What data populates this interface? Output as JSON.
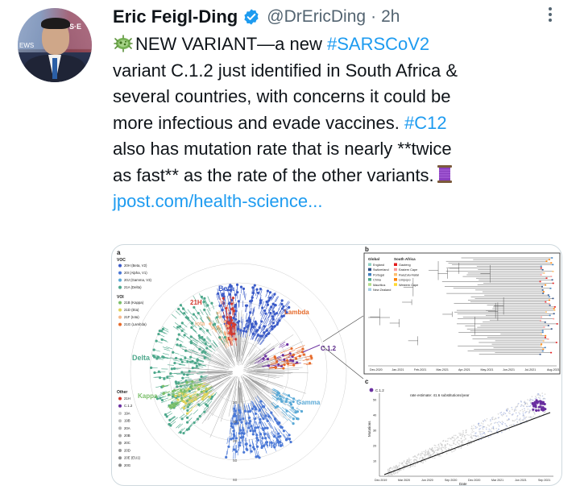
{
  "author": {
    "name": "Eric Feigl-Ding",
    "handle": "@DrEricDing",
    "separator": "·",
    "time": "2h"
  },
  "tweet": {
    "line1_lead": "NEW VARIANT—a new ",
    "line1_tag": "#SARSCoV2",
    "line2": "variant C.1.2 just identified in South Africa &",
    "line3": "several countries, with concerns it could be",
    "line4_lead": "more infectious and evade vaccines. ",
    "line4_tag": "#C12",
    "line5": "also has mutation rate that is nearly **twice",
    "line6": "as fast** as the rate of the other variants.",
    "link": "jpost.com/health-science..."
  },
  "icons": {
    "verified": "verified-badge-icon",
    "more": "more-options-icon",
    "lead_emoji": "microbe-emoji-icon",
    "trail_emoji": "thread-spool-emoji-icon"
  },
  "colors": {
    "link": "#1d9bf0",
    "text": "#0f1419",
    "muted": "#536471"
  },
  "figure": {
    "panel_a": "a",
    "panel_b": "b",
    "panel_c": "c",
    "voc_title": "VOC",
    "voc": [
      "20H (Beta, V2)",
      "20I (Alpha, V1)",
      "20J (Gamma, V3)",
      "21A (Delta)"
    ],
    "voi_title": "VOI",
    "voi": [
      "21B (Kappa)",
      "21D (Eta)",
      "21F (Iota)",
      "21G (Lambda)"
    ],
    "other_title": "Other",
    "other": [
      "21H",
      "C.1.2",
      "19A",
      "19B",
      "20A",
      "20B",
      "20C",
      "20D",
      "20E (EU1)",
      "20G"
    ],
    "clades": {
      "beta": "Beta",
      "lambda": "Lambda",
      "c12": "C.1.2",
      "delta": "Delta",
      "kappa": "Kappa",
      "eta": "Eta",
      "gamma": "Gamma",
      "alpha": "Alpha",
      "h21": "21H",
      "iota": "Iota"
    },
    "radial_ticks": [
      "20",
      "30",
      "40",
      "50",
      "60"
    ],
    "b_global_title": "Global",
    "b_global": [
      "England",
      "Switzerland",
      "Portugal",
      "China",
      "Mauritius",
      "New Zealand"
    ],
    "b_sa_title": "South Africa",
    "b_sa": [
      "Gauteng",
      "Eastern Cape",
      "KwaZulu-Natal",
      "Limpopo",
      "Western Cape"
    ],
    "b_axis": [
      "Dec-2020",
      "Jan-2021",
      "Feb-2021",
      "Mar-2021",
      "Apr-2021",
      "May-2021",
      "Jun-2021",
      "Jul-2021",
      "Aug-2021"
    ],
    "c_legend": "C.1.2",
    "c_note": "rate estimate: 41.6 substitutions/year",
    "c_ylabel": "Mutations",
    "c_xlabel": "Date",
    "c_yticks": [
      "50",
      "40",
      "30",
      "20",
      "10"
    ],
    "c_xticks": [
      "Dec 2019",
      "Mar 2020",
      "Jun 2020",
      "Sep 2020",
      "Dec 2020",
      "Mar 2021",
      "Jun 2021",
      "Sep 2021"
    ]
  }
}
